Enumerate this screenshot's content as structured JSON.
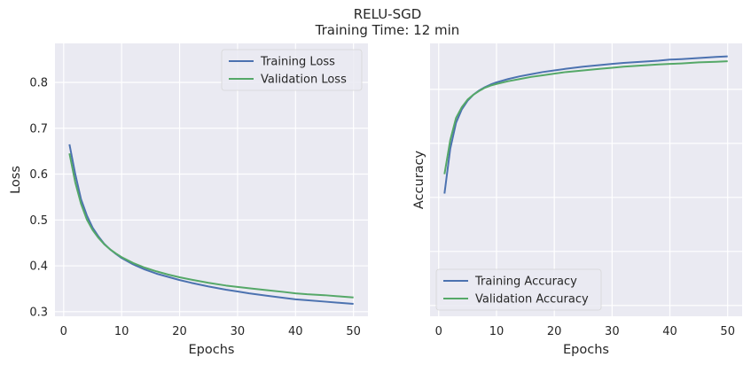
{
  "figure": {
    "title": "RELU-SGD",
    "subtitle": "Training Time: 12 min"
  },
  "colors": {
    "background": "#eaeaf2",
    "grid": "#ffffff",
    "training": "#4c72b0",
    "validation": "#55a868"
  },
  "chart_data": [
    {
      "type": "line",
      "xlabel": "Epochs",
      "ylabel": "Loss",
      "xlim": [
        -1.5,
        52.5
      ],
      "ylim": [
        0.29,
        0.885
      ],
      "xticks": [
        0,
        10,
        20,
        30,
        40,
        50
      ],
      "yticks": [
        0.3,
        0.4,
        0.5,
        0.6,
        0.7,
        0.8
      ],
      "ytick_labels": [
        "0.3",
        "0.4",
        "0.5",
        "0.6",
        "0.7",
        "0.8"
      ],
      "grid": true,
      "legend_position": "top-right",
      "series": [
        {
          "name": "Training Loss",
          "x": [
            1,
            2,
            3,
            4,
            5,
            6,
            7,
            8,
            9,
            10,
            12,
            14,
            16,
            18,
            20,
            22,
            25,
            28,
            30,
            32,
            35,
            38,
            40,
            42,
            45,
            48,
            50
          ],
          "y": [
            0.665,
            0.6,
            0.545,
            0.51,
            0.483,
            0.464,
            0.448,
            0.436,
            0.426,
            0.417,
            0.403,
            0.392,
            0.383,
            0.376,
            0.369,
            0.363,
            0.355,
            0.348,
            0.344,
            0.34,
            0.335,
            0.33,
            0.327,
            0.325,
            0.322,
            0.319,
            0.317
          ]
        },
        {
          "name": "Validation Loss",
          "x": [
            1,
            2,
            3,
            4,
            5,
            6,
            7,
            8,
            9,
            10,
            12,
            14,
            16,
            18,
            20,
            22,
            25,
            28,
            30,
            32,
            35,
            38,
            40,
            42,
            45,
            48,
            50
          ],
          "y": [
            0.645,
            0.582,
            0.535,
            0.501,
            0.478,
            0.461,
            0.447,
            0.436,
            0.427,
            0.419,
            0.406,
            0.396,
            0.388,
            0.381,
            0.375,
            0.37,
            0.363,
            0.357,
            0.354,
            0.351,
            0.347,
            0.343,
            0.34,
            0.338,
            0.336,
            0.333,
            0.331
          ]
        }
      ]
    },
    {
      "type": "line",
      "xlabel": "Epochs",
      "ylabel": "Accuracy",
      "xlim": [
        -1.5,
        52.5
      ],
      "ylim": [
        0.38,
        0.885
      ],
      "xticks": [
        0,
        10,
        20,
        30,
        40,
        50
      ],
      "yticks": [
        0.4,
        0.5,
        0.6,
        0.7,
        0.8
      ],
      "ytick_labels": [],
      "grid": true,
      "legend_position": "bottom-left",
      "series": [
        {
          "name": "Training Accuracy",
          "x": [
            1,
            2,
            3,
            4,
            5,
            6,
            7,
            8,
            9,
            10,
            12,
            14,
            16,
            18,
            20,
            22,
            25,
            28,
            30,
            32,
            35,
            38,
            40,
            42,
            45,
            48,
            50
          ],
          "y": [
            0.607,
            0.69,
            0.738,
            0.763,
            0.779,
            0.79,
            0.798,
            0.804,
            0.809,
            0.813,
            0.819,
            0.824,
            0.828,
            0.832,
            0.835,
            0.838,
            0.842,
            0.845,
            0.847,
            0.849,
            0.851,
            0.853,
            0.855,
            0.856,
            0.858,
            0.86,
            0.861
          ]
        },
        {
          "name": "Validation Accuracy",
          "x": [
            1,
            2,
            3,
            4,
            5,
            6,
            7,
            8,
            9,
            10,
            12,
            14,
            16,
            18,
            20,
            22,
            25,
            28,
            30,
            32,
            35,
            38,
            40,
            42,
            45,
            48,
            50
          ],
          "y": [
            0.643,
            0.706,
            0.747,
            0.767,
            0.781,
            0.79,
            0.797,
            0.803,
            0.807,
            0.81,
            0.815,
            0.819,
            0.823,
            0.826,
            0.829,
            0.832,
            0.835,
            0.838,
            0.84,
            0.842,
            0.844,
            0.846,
            0.847,
            0.848,
            0.85,
            0.851,
            0.852
          ]
        }
      ]
    }
  ]
}
